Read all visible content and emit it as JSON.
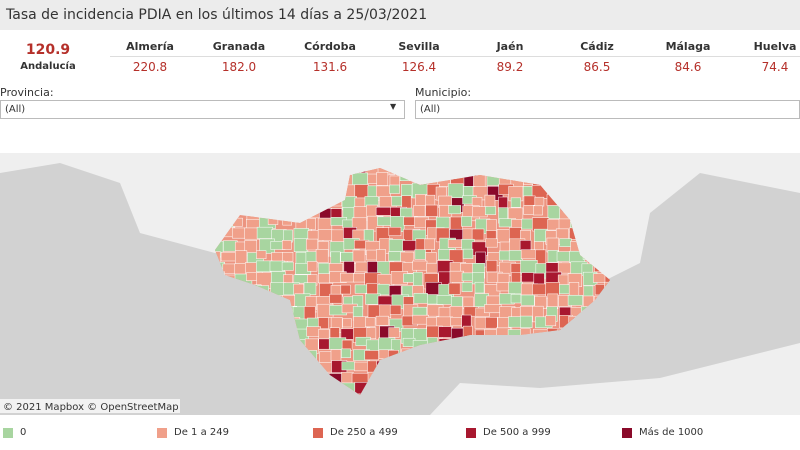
{
  "header": {
    "title": "Tasa de incidencia PDIA en los últimos 14 días a 25/03/2021"
  },
  "summary": {
    "value": "120.9",
    "label": "Andalucía"
  },
  "provinces": [
    {
      "name": "Almería",
      "value": "220.8"
    },
    {
      "name": "Granada",
      "value": "182.0"
    },
    {
      "name": "Córdoba",
      "value": "131.6"
    },
    {
      "name": "Sevilla",
      "value": "126.4"
    },
    {
      "name": "Jaén",
      "value": "89.2"
    },
    {
      "name": "Cádiz",
      "value": "86.5"
    },
    {
      "name": "Málaga",
      "value": "84.6"
    },
    {
      "name": "Huelva",
      "value": "74.4"
    }
  ],
  "filters": [
    {
      "label": "Provincia:",
      "value": "(All)"
    },
    {
      "label": "Municipio:",
      "value": "(All)"
    }
  ],
  "map": {
    "attribution": "© 2021 Mapbox © OpenStreetMap"
  },
  "legend": [
    {
      "label": "0",
      "color": "#a8d5a0"
    },
    {
      "label": "De 1 a 249",
      "color": "#f0a08a"
    },
    {
      "label": "De 250 a 499",
      "color": "#dd6552"
    },
    {
      "label": "De 500 a 999",
      "color": "#a8182f"
    },
    {
      "label": "Más de 1000",
      "color": "#8a0a2a"
    }
  ]
}
